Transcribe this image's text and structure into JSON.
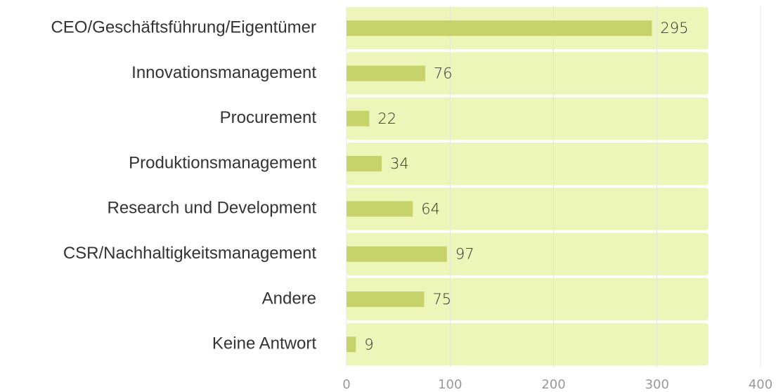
{
  "chart_data": {
    "type": "bar",
    "orientation": "horizontal",
    "categories": [
      "CEO/Geschäftsführung/Eigentümer",
      "Innovationsmanagement",
      "Procurement",
      "Produktionsmanagement",
      "Research und Development",
      "CSR/Nachhaltigkeitsmanagement",
      "Andere",
      "Keine Antwort"
    ],
    "values": [
      295,
      76,
      22,
      34,
      64,
      97,
      75,
      9
    ],
    "color": "#c5d36a",
    "xlim": [
      0,
      400
    ],
    "xticks": [
      0,
      100,
      200,
      300,
      400
    ],
    "grid": true
  }
}
